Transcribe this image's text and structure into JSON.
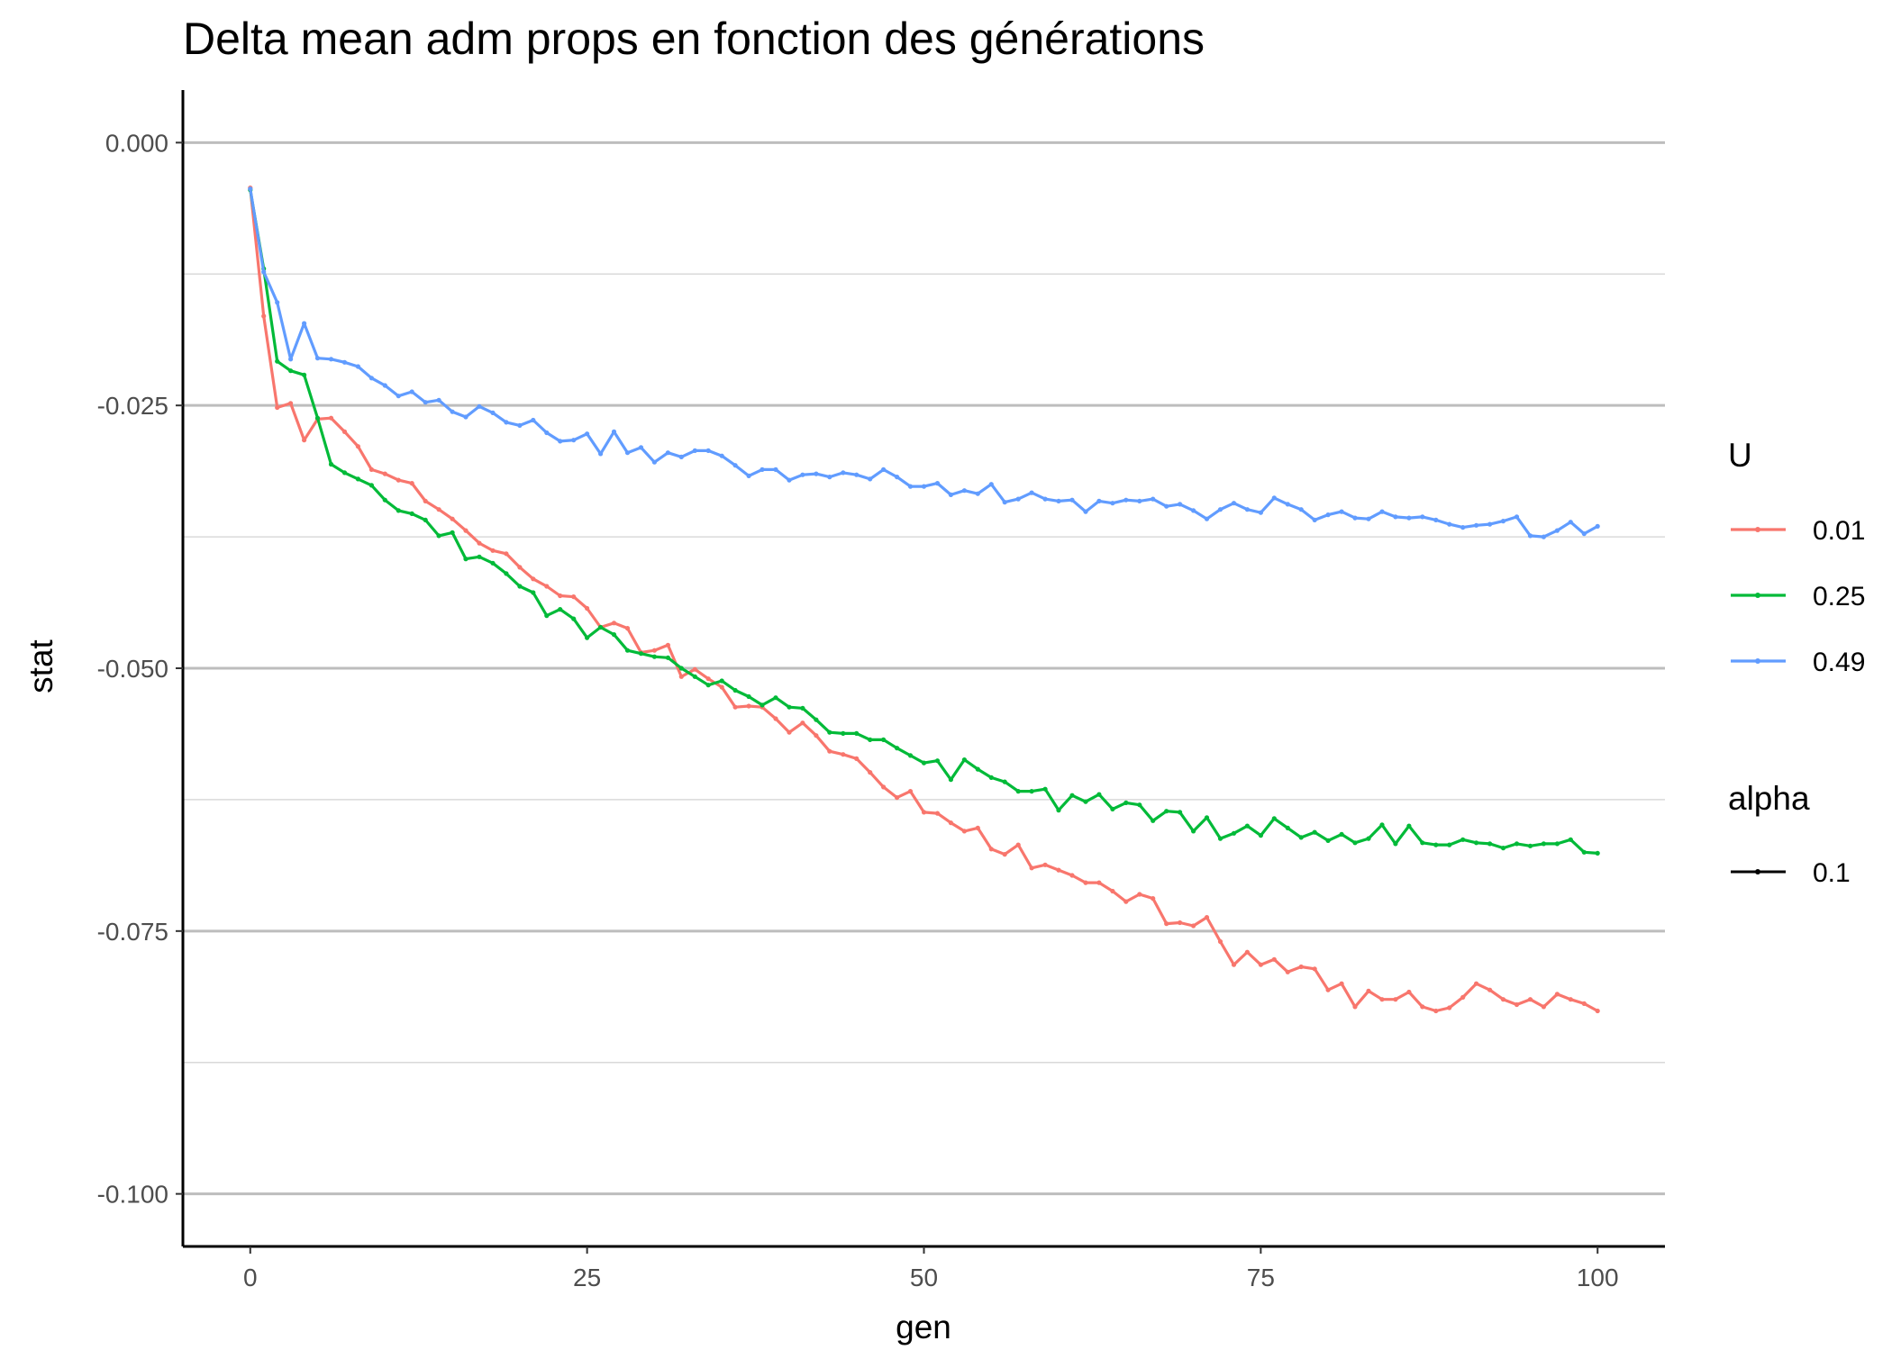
{
  "chart_data": {
    "type": "line",
    "title": "Delta mean adm props en fonction des générations",
    "xlabel": "gen",
    "ylabel": "stat",
    "xlim": [
      -5,
      105
    ],
    "ylim": [
      -0.105,
      0.005
    ],
    "x_ticks": [
      0,
      25,
      50,
      75,
      100
    ],
    "x_tick_labels": [
      "0",
      "25",
      "50",
      "75",
      "100"
    ],
    "y_ticks": [
      0,
      -0.025,
      -0.05,
      -0.075,
      -0.1
    ],
    "y_tick_labels": [
      "0.000",
      "-0.025",
      "-0.050",
      "-0.075",
      "-0.100"
    ],
    "grid": "horizontal",
    "legend_position": "right",
    "legend": {
      "color_title": "U",
      "alpha_title": "alpha",
      "alpha_label": "0.1"
    },
    "x_start": 0,
    "series": [
      {
        "name": "0.01",
        "color": "#F8766D",
        "values": [
          -0.0043,
          -0.0165,
          -0.0252,
          -0.0248,
          -0.0283,
          -0.0263,
          -0.0262,
          -0.0275,
          -0.0289,
          -0.0311,
          -0.0315,
          -0.0321,
          -0.0324,
          -0.0341,
          -0.0349,
          -0.0358,
          -0.0369,
          -0.0381,
          -0.0388,
          -0.0391,
          -0.0404,
          -0.0415,
          -0.0422,
          -0.0431,
          -0.0432,
          -0.0443,
          -0.0461,
          -0.0457,
          -0.0462,
          -0.0485,
          -0.0483,
          -0.0478,
          -0.0508,
          -0.0501,
          -0.051,
          -0.0518,
          -0.0537,
          -0.0536,
          -0.0537,
          -0.0548,
          -0.0561,
          -0.0552,
          -0.0564,
          -0.0579,
          -0.0582,
          -0.0586,
          -0.0599,
          -0.0613,
          -0.0623,
          -0.0617,
          -0.0637,
          -0.0638,
          -0.0647,
          -0.0655,
          -0.0652,
          -0.0672,
          -0.0677,
          -0.0668,
          -0.069,
          -0.0687,
          -0.0692,
          -0.0697,
          -0.0704,
          -0.0704,
          -0.0712,
          -0.0722,
          -0.0715,
          -0.0719,
          -0.0743,
          -0.0742,
          -0.0745,
          -0.0737,
          -0.076,
          -0.0782,
          -0.077,
          -0.0782,
          -0.0777,
          -0.0789,
          -0.0784,
          -0.0786,
          -0.0806,
          -0.08,
          -0.0822,
          -0.0807,
          -0.0815,
          -0.0815,
          -0.0808,
          -0.0822,
          -0.0826,
          -0.0823,
          -0.0813,
          -0.08,
          -0.0806,
          -0.0815,
          -0.082,
          -0.0815,
          -0.0822,
          -0.081,
          -0.0815,
          -0.0819,
          -0.0826
        ]
      },
      {
        "name": "0.25",
        "color": "#00BA38",
        "values": [
          -0.0045,
          -0.012,
          -0.0208,
          -0.0217,
          -0.0221,
          -0.0262,
          -0.0306,
          -0.0314,
          -0.032,
          -0.0326,
          -0.034,
          -0.035,
          -0.0353,
          -0.0359,
          -0.0374,
          -0.0371,
          -0.0396,
          -0.0394,
          -0.04,
          -0.041,
          -0.0422,
          -0.0428,
          -0.045,
          -0.0444,
          -0.0453,
          -0.0471,
          -0.0461,
          -0.0468,
          -0.0483,
          -0.0486,
          -0.0489,
          -0.049,
          -0.05,
          -0.0508,
          -0.0516,
          -0.0512,
          -0.0521,
          -0.0527,
          -0.0535,
          -0.0528,
          -0.0537,
          -0.0538,
          -0.0549,
          -0.0561,
          -0.0562,
          -0.0562,
          -0.0568,
          -0.0568,
          -0.0576,
          -0.0583,
          -0.059,
          -0.0588,
          -0.0606,
          -0.0587,
          -0.0596,
          -0.0604,
          -0.0608,
          -0.0617,
          -0.0617,
          -0.0615,
          -0.0635,
          -0.0621,
          -0.0627,
          -0.062,
          -0.0634,
          -0.0628,
          -0.063,
          -0.0645,
          -0.0636,
          -0.0637,
          -0.0655,
          -0.0642,
          -0.0662,
          -0.0657,
          -0.065,
          -0.0659,
          -0.0643,
          -0.0652,
          -0.0661,
          -0.0656,
          -0.0664,
          -0.0658,
          -0.0666,
          -0.0662,
          -0.0649,
          -0.0667,
          -0.065,
          -0.0666,
          -0.0668,
          -0.0668,
          -0.0663,
          -0.0666,
          -0.0667,
          -0.0671,
          -0.0667,
          -0.0669,
          -0.0667,
          -0.0667,
          -0.0663,
          -0.0675,
          -0.0676
        ]
      },
      {
        "name": "0.49",
        "color": "#619CFF",
        "values": [
          -0.0044,
          -0.0123,
          -0.0152,
          -0.0206,
          -0.0172,
          -0.0205,
          -0.0206,
          -0.0209,
          -0.0213,
          -0.0224,
          -0.0231,
          -0.0241,
          -0.0237,
          -0.0247,
          -0.0245,
          -0.0256,
          -0.0261,
          -0.0251,
          -0.0257,
          -0.0266,
          -0.0269,
          -0.0264,
          -0.0276,
          -0.0284,
          -0.0283,
          -0.0277,
          -0.0296,
          -0.0275,
          -0.0295,
          -0.029,
          -0.0304,
          -0.0295,
          -0.0299,
          -0.0293,
          -0.0293,
          -0.0298,
          -0.0307,
          -0.0317,
          -0.0311,
          -0.0311,
          -0.0321,
          -0.0316,
          -0.0315,
          -0.0318,
          -0.0314,
          -0.0316,
          -0.032,
          -0.0311,
          -0.0318,
          -0.0327,
          -0.0327,
          -0.0324,
          -0.0335,
          -0.0331,
          -0.0334,
          -0.0325,
          -0.0342,
          -0.0339,
          -0.0333,
          -0.0339,
          -0.0341,
          -0.034,
          -0.0351,
          -0.0341,
          -0.0343,
          -0.034,
          -0.0341,
          -0.0339,
          -0.0346,
          -0.0344,
          -0.035,
          -0.0358,
          -0.0349,
          -0.0343,
          -0.0349,
          -0.0352,
          -0.0338,
          -0.0344,
          -0.0349,
          -0.0359,
          -0.0354,
          -0.0351,
          -0.0357,
          -0.0358,
          -0.0351,
          -0.0356,
          -0.0357,
          -0.0356,
          -0.0359,
          -0.0363,
          -0.0366,
          -0.0364,
          -0.0363,
          -0.036,
          -0.0356,
          -0.0374,
          -0.0375,
          -0.0369,
          -0.0361,
          -0.0372,
          -0.0365
        ]
      }
    ]
  }
}
